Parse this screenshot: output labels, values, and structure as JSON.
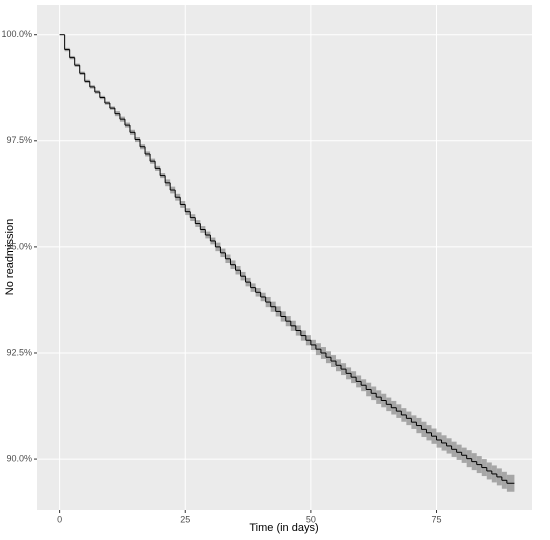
{
  "chart_data": {
    "type": "step",
    "xlabel": "Time (in days)",
    "ylabel": "No readmission",
    "x": [
      0,
      1,
      2,
      3,
      4,
      5,
      6,
      7,
      8,
      9,
      10,
      11,
      12,
      13,
      14,
      15,
      16,
      17,
      18,
      19,
      20,
      21,
      22,
      23,
      24,
      25,
      26,
      27,
      28,
      29,
      30,
      31,
      32,
      33,
      34,
      35,
      36,
      37,
      38,
      39,
      40,
      41,
      42,
      43,
      44,
      45,
      46,
      47,
      48,
      49,
      50,
      51,
      52,
      53,
      54,
      55,
      56,
      57,
      58,
      59,
      60,
      61,
      62,
      63,
      64,
      65,
      66,
      67,
      68,
      69,
      70,
      71,
      72,
      73,
      74,
      75,
      76,
      77,
      78,
      79,
      80,
      81,
      82,
      83,
      84,
      85,
      86,
      87,
      88,
      89
    ],
    "values": [
      100,
      99.65,
      99.46,
      99.28,
      99.09,
      98.9,
      98.77,
      98.65,
      98.52,
      98.39,
      98.27,
      98.14,
      98.01,
      97.87,
      97.7,
      97.53,
      97.36,
      97.19,
      97.02,
      96.85,
      96.68,
      96.51,
      96.34,
      96.17,
      96.0,
      95.83,
      95.69,
      95.55,
      95.41,
      95.28,
      95.14,
      95.0,
      94.86,
      94.72,
      94.58,
      94.45,
      94.31,
      94.17,
      94.04,
      93.93,
      93.82,
      93.7,
      93.59,
      93.48,
      93.36,
      93.25,
      93.14,
      93.03,
      92.91,
      92.8,
      92.69,
      92.59,
      92.5,
      92.4,
      92.31,
      92.21,
      92.12,
      92.02,
      91.93,
      91.83,
      91.74,
      91.64,
      91.55,
      91.46,
      91.38,
      91.29,
      91.21,
      91.13,
      91.04,
      90.96,
      90.87,
      90.79,
      90.7,
      90.62,
      90.54,
      90.45,
      90.38,
      90.31,
      90.23,
      90.16,
      90.09,
      90.01,
      89.94,
      89.87,
      89.8,
      89.72,
      89.65,
      89.58,
      89.5,
      89.43
    ],
    "lower": [
      100,
      99.61,
      99.42,
      99.24,
      99.05,
      98.86,
      98.73,
      98.61,
      98.48,
      98.35,
      98.23,
      98.08,
      97.95,
      97.81,
      97.64,
      97.47,
      97.3,
      97.13,
      96.96,
      96.79,
      96.62,
      96.43,
      96.26,
      96.09,
      95.92,
      95.75,
      95.61,
      95.47,
      95.33,
      95.2,
      95.06,
      94.9,
      94.76,
      94.62,
      94.48,
      94.35,
      94.21,
      94.07,
      93.94,
      93.83,
      93.72,
      93.58,
      93.47,
      93.36,
      93.24,
      93.13,
      93.02,
      92.91,
      92.79,
      92.68,
      92.57,
      92.45,
      92.36,
      92.26,
      92.17,
      92.07,
      91.98,
      91.88,
      91.79,
      91.69,
      91.6,
      91.48,
      91.39,
      91.3,
      91.22,
      91.13,
      91.05,
      90.97,
      90.88,
      90.8,
      90.71,
      90.61,
      90.52,
      90.44,
      90.36,
      90.27,
      90.2,
      90.13,
      90.05,
      89.98,
      89.91,
      89.81,
      89.74,
      89.67,
      89.6,
      89.52,
      89.45,
      89.38,
      89.3,
      89.23
    ],
    "upper": [
      100,
      99.69,
      99.5,
      99.32,
      99.13,
      98.94,
      98.81,
      98.69,
      98.56,
      98.43,
      98.31,
      98.2,
      98.07,
      97.93,
      97.76,
      97.59,
      97.42,
      97.25,
      97.08,
      96.91,
      96.74,
      96.59,
      96.42,
      96.25,
      96.08,
      95.91,
      95.77,
      95.63,
      95.49,
      95.36,
      95.22,
      95.1,
      94.96,
      94.82,
      94.68,
      94.55,
      94.41,
      94.27,
      94.14,
      94.03,
      93.92,
      93.82,
      93.71,
      93.6,
      93.48,
      93.37,
      93.26,
      93.15,
      93.03,
      92.92,
      92.81,
      92.73,
      92.64,
      92.54,
      92.45,
      92.35,
      92.26,
      92.16,
      92.07,
      91.97,
      91.88,
      91.8,
      91.71,
      91.62,
      91.54,
      91.45,
      91.37,
      91.29,
      91.2,
      91.12,
      91.03,
      90.97,
      90.88,
      90.8,
      90.72,
      90.63,
      90.56,
      90.49,
      90.41,
      90.34,
      90.27,
      90.21,
      90.14,
      90.07,
      90.0,
      89.92,
      89.85,
      89.78,
      89.7,
      89.63
    ],
    "color": "#000000",
    "band_color": "#9a9a9a",
    "xlim": [
      -4.5,
      94
    ],
    "ylim": [
      88.8,
      100.7
    ],
    "xticks": [
      0,
      25,
      50,
      75
    ],
    "yticks": [
      {
        "value": 90,
        "label": "90.0%"
      },
      {
        "value": 92.5,
        "label": "92.5%"
      },
      {
        "value": 95,
        "label": "95.0%"
      },
      {
        "value": 97.5,
        "label": "97.5%"
      },
      {
        "value": 100,
        "label": "100.0%"
      }
    ],
    "grid": true
  }
}
